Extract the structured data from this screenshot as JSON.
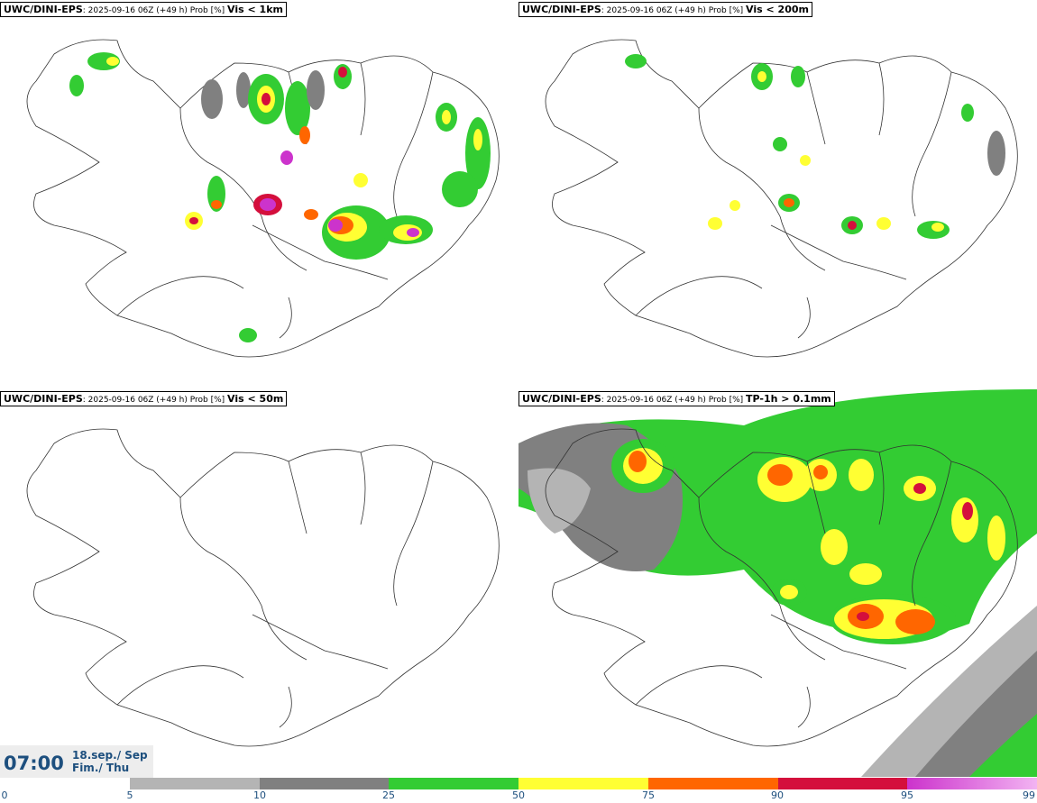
{
  "panels": [
    {
      "model": "UWC/DINI-EPS",
      "run": "2025-09-16 06Z (+49 h) Prob [%]",
      "variable": "Vis < 1km"
    },
    {
      "model": "UWC/DINI-EPS",
      "run": "2025-09-16 06Z (+49 h) Prob [%]",
      "variable": "Vis < 200m"
    },
    {
      "model": "UWC/DINI-EPS",
      "run": "2025-09-16 06Z (+49 h) Prob [%]",
      "variable": "Vis < 50m"
    },
    {
      "model": "UWC/DINI-EPS",
      "run": "2025-09-16 06Z (+49 h) Prob [%]",
      "variable": "TP-1h > 0.1mm"
    }
  ],
  "valid_time": {
    "time": "07:00",
    "date_line1": "18.sep./ Sep",
    "date_line2": "Fim./ Thu"
  },
  "colorbar": {
    "ticks": [
      "0",
      "5",
      "10",
      "25",
      "50",
      "75",
      "90",
      "95",
      "99"
    ],
    "colors": [
      "#ffffff",
      "#b4b4b4",
      "#808080",
      "#33cc33",
      "#ffff33",
      "#ff6600",
      "#d40f3c",
      "#cc33cc"
    ],
    "last_gradient_to": "#f2b3f2"
  }
}
